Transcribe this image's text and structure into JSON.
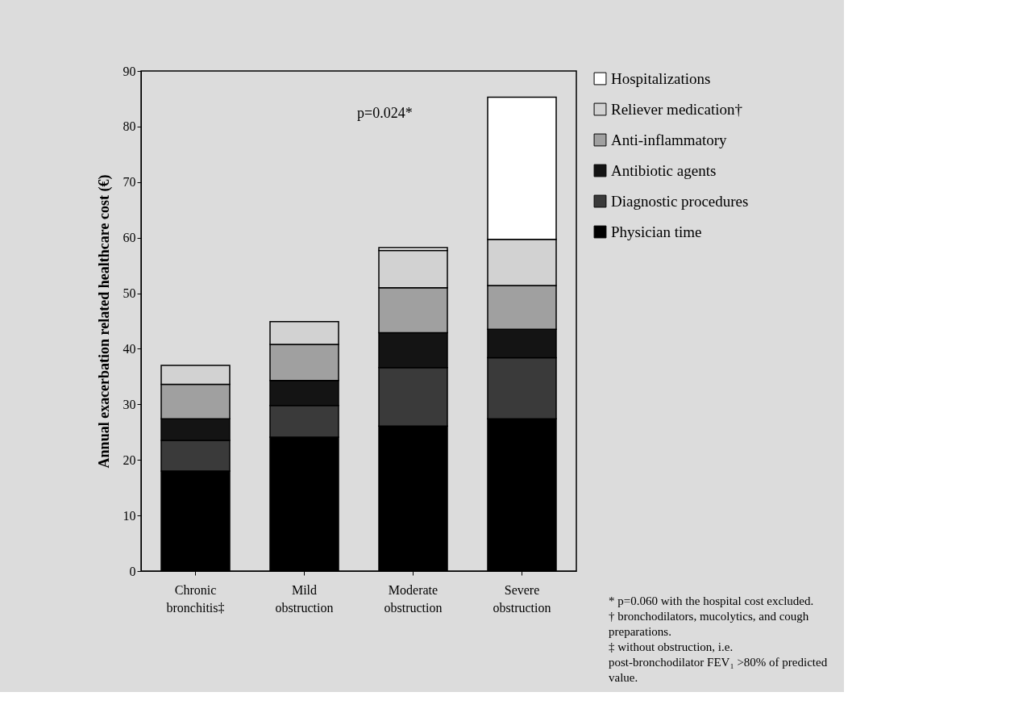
{
  "chart_data": {
    "type": "bar",
    "stacked": true,
    "ylabel": "Annual exacerbation related healthcare cost (€)",
    "categories": [
      "Chronic bronchitis‡",
      "Mild obstruction",
      "Moderate obstruction",
      "Severe obstruction"
    ],
    "series": [
      {
        "name": "Physician time",
        "color": "#000000",
        "values": [
          18.0,
          24.1,
          26.1,
          27.4
        ]
      },
      {
        "name": "Diagnostic procedures",
        "color": "#3a3a3a",
        "values": [
          5.5,
          5.7,
          10.5,
          11.0
        ]
      },
      {
        "name": "Antibiotic agents",
        "color": "#141414",
        "values": [
          3.9,
          4.5,
          6.3,
          5.1
        ]
      },
      {
        "name": "Anti-inflammatory",
        "color": "#a0a0a0",
        "values": [
          6.2,
          6.5,
          8.1,
          7.9
        ]
      },
      {
        "name": "Reliever medication†",
        "color": "#d2d2d2",
        "values": [
          3.4,
          4.1,
          6.7,
          8.3
        ]
      },
      {
        "name": "Hospitalizations",
        "color": "#ffffff",
        "values": [
          0,
          0,
          0.5,
          25.6
        ]
      }
    ],
    "ylim": [
      0,
      90
    ],
    "yticks": [
      0,
      10,
      20,
      30,
      40,
      50,
      60,
      70,
      80,
      90
    ],
    "grid": false,
    "legend": "right",
    "annotations": [
      "p=0.024*",
      "* p=0.060 with the hospital cost excluded.",
      "† bronchodilators, mucolytics, and cough preparations.",
      "‡ without obstruction, i.e. post-bronchodilator FEV₁ >80% of predicted value."
    ]
  }
}
